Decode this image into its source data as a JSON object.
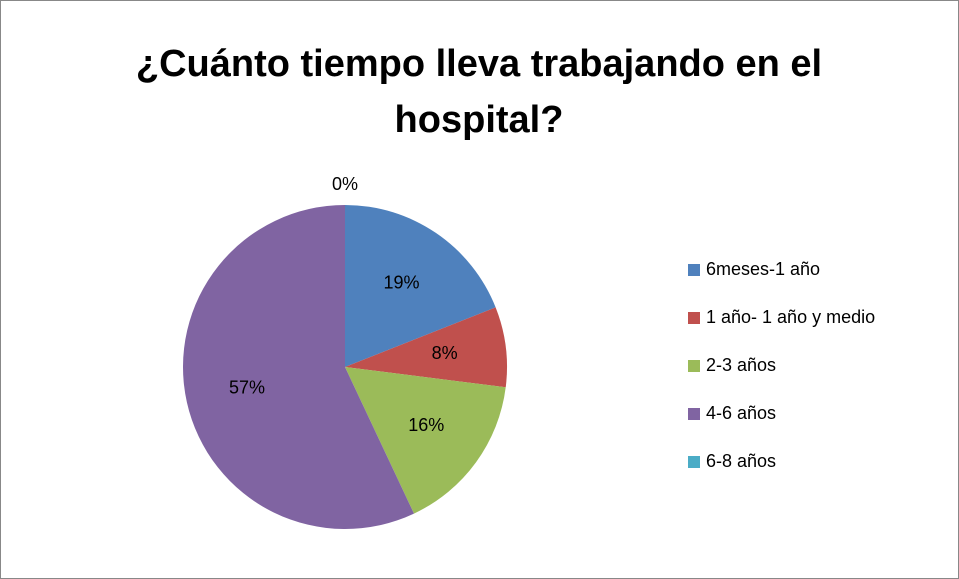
{
  "chart_data": {
    "type": "pie",
    "title": "¿Cuánto tiempo lleva trabajando en el hospital?",
    "categories": [
      "6meses-1 año",
      "1 año- 1 año y medio",
      "2-3 años",
      "4-6 años",
      "6-8 años"
    ],
    "values": [
      19,
      8,
      16,
      57,
      0
    ],
    "value_labels": [
      "19%",
      "8%",
      "16%",
      "57%",
      "0%"
    ],
    "colors": [
      "#4f81bd",
      "#c0504d",
      "#9bbb59",
      "#8064a2",
      "#4bacc6"
    ],
    "legend": "right"
  }
}
